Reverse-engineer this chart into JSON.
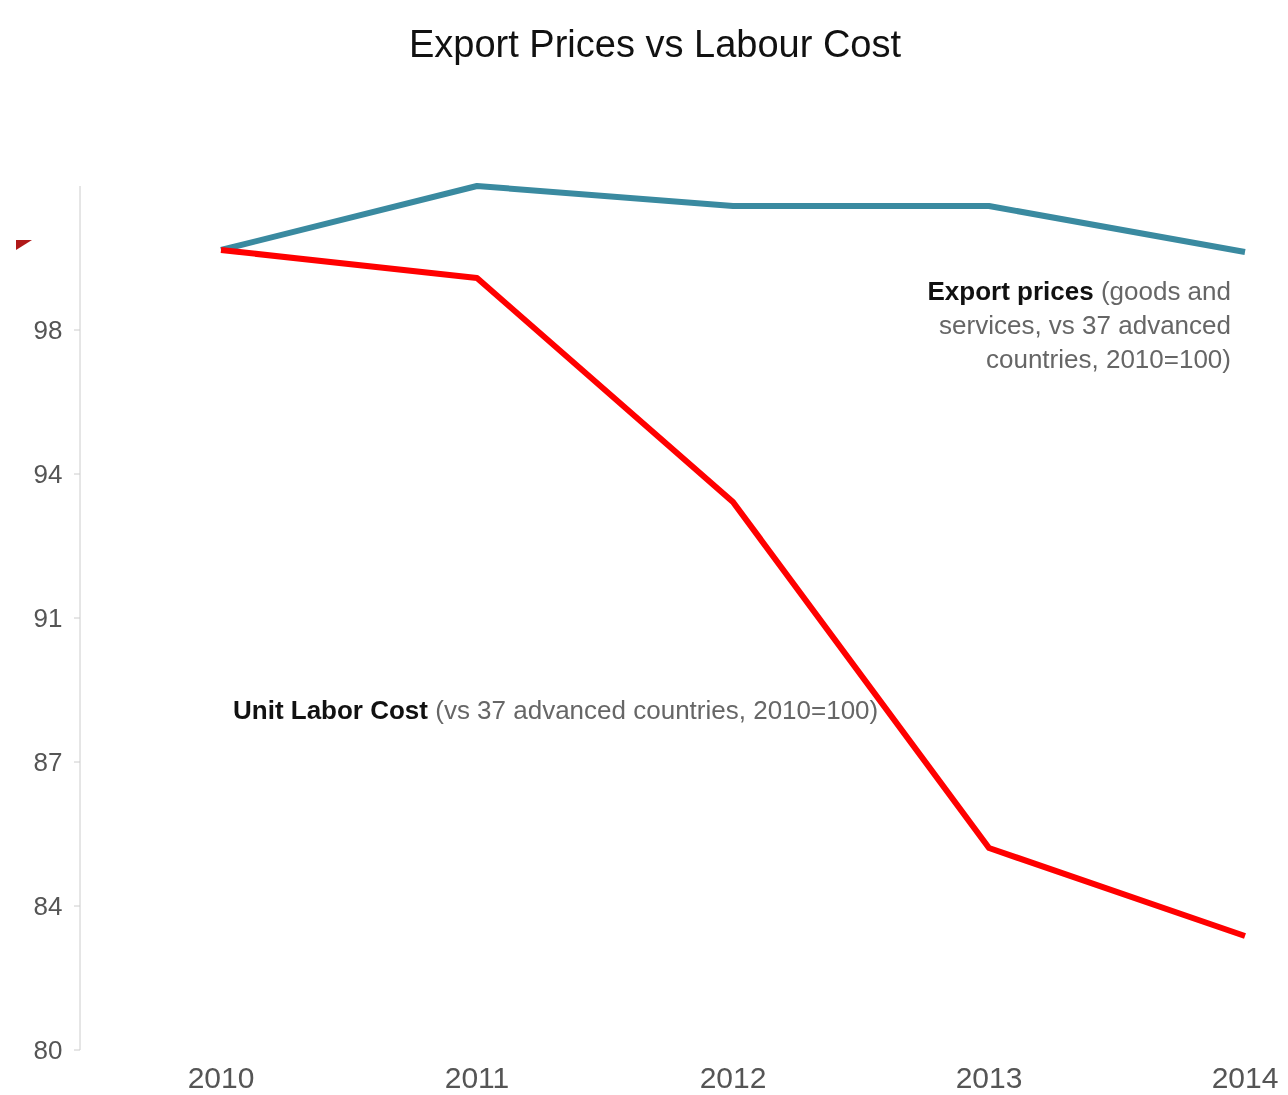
{
  "chart_data": {
    "type": "line",
    "title": "Export Prices vs Labour Cost",
    "x": [
      2010,
      2011,
      2012,
      2013,
      2014
    ],
    "xlim": [
      2010,
      2014
    ],
    "xticks": [
      2010,
      2011,
      2012,
      2013,
      2014
    ],
    "ylim": [
      80,
      101.6
    ],
    "yticks": [
      {
        "value": 80,
        "label": "80"
      },
      {
        "value": 83.6,
        "label": "84"
      },
      {
        "value": 87.2,
        "label": "87"
      },
      {
        "value": 90.8,
        "label": "91"
      },
      {
        "value": 94.4,
        "label": "94"
      },
      {
        "value": 98,
        "label": "98"
      }
    ],
    "series": [
      {
        "name": "Export prices (goods and services, vs 37 advanced countries, 2010=100)",
        "color": "#3a8aa0",
        "values": [
          100,
          101.6,
          101.1,
          101.1,
          99.95
        ]
      },
      {
        "name": "Unit Labor Cost (vs 37 advanced countries, 2010=100)",
        "color": "#ff0000",
        "values": [
          100,
          99.3,
          93.7,
          85.05,
          82.85
        ]
      }
    ],
    "grid": false,
    "marker": "none",
    "line_style": "solid"
  }
}
